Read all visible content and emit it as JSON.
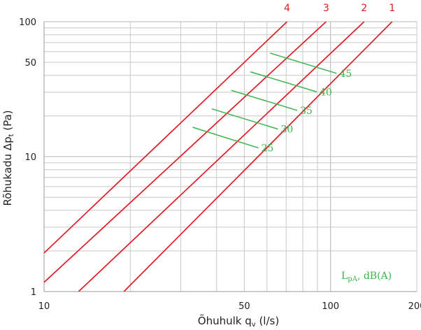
{
  "chart_data": {
    "type": "line",
    "x_scale": "log",
    "y_scale": "log",
    "xlim": [
      10,
      200
    ],
    "ylim": [
      1,
      100
    ],
    "grid": true,
    "xlabel": {
      "main": "Õhuhulk q",
      "sub": "v",
      "rest": " (l/s)"
    },
    "ylabel": {
      "main": "Rõhukadu Δp",
      "sub": "t",
      "rest": " (Pa)"
    },
    "x_tick_labels": [
      {
        "value": 10,
        "label": "10"
      },
      {
        "value": 50,
        "label": "50"
      },
      {
        "value": 100,
        "label": "100"
      },
      {
        "value": 200,
        "label": "200"
      }
    ],
    "y_tick_labels": [
      {
        "value": 1,
        "label": "1"
      },
      {
        "value": 10,
        "label": "10"
      },
      {
        "value": 50,
        "label": "50"
      },
      {
        "value": 100,
        "label": "100"
      }
    ],
    "series": [
      {
        "name": "1",
        "points": [
          [
            19,
            1
          ],
          [
            164,
            100
          ]
        ]
      },
      {
        "name": "2",
        "points": [
          [
            13.2,
            1
          ],
          [
            131,
            100
          ]
        ]
      },
      {
        "name": "3",
        "points": [
          [
            10,
            1.17
          ],
          [
            96.5,
            100
          ]
        ]
      },
      {
        "name": "4",
        "points": [
          [
            10,
            1.93
          ],
          [
            70.5,
            100
          ]
        ]
      }
    ],
    "noise_lines": [
      {
        "name": "25",
        "points": [
          [
            33,
            16.5
          ],
          [
            56,
            11.6
          ]
        ]
      },
      {
        "name": "30",
        "points": [
          [
            38.5,
            22.6
          ],
          [
            65.5,
            16.0
          ]
        ]
      },
      {
        "name": "35",
        "points": [
          [
            45,
            31.0
          ],
          [
            76.5,
            22.0
          ]
        ]
      },
      {
        "name": "40",
        "points": [
          [
            52.5,
            42.5
          ],
          [
            89.5,
            30.2
          ]
        ]
      },
      {
        "name": "45",
        "points": [
          [
            61.5,
            58.5
          ],
          [
            105,
            41.4
          ]
        ]
      }
    ],
    "legend_text": {
      "main": "L",
      "sub": "pA",
      "rest": ", dB(A)"
    },
    "colors": {
      "series": "#e01b24",
      "noise": "#3cb44b",
      "grid": "#c8c8c8",
      "axis": "#999999"
    }
  }
}
